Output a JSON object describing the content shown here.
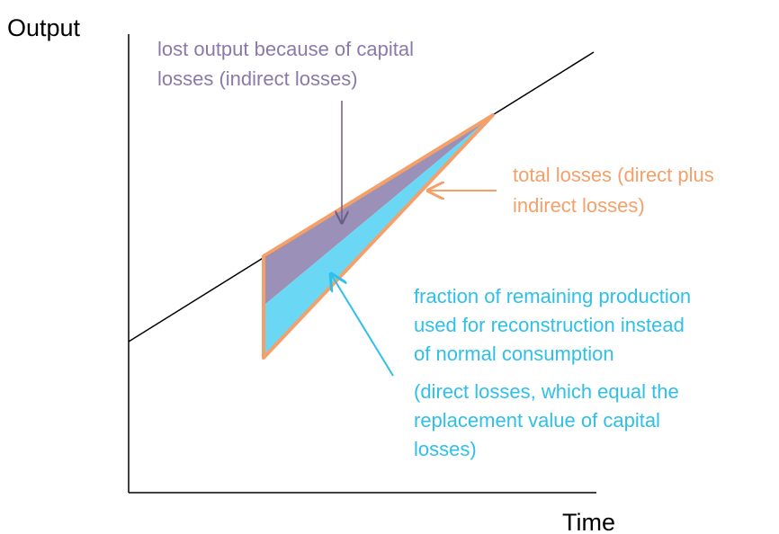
{
  "axes": {
    "y_label": "Output",
    "x_label": "Time"
  },
  "annotations": [
    {
      "lines": [
        "lost output because of capital",
        "losses (indirect losses)"
      ]
    },
    {
      "lines": [
        "total losses (direct plus",
        "indirect losses)"
      ]
    },
    {
      "lines": [
        "fraction of remaining production",
        "used for reconstruction instead",
        "of normal consumption",
        "(direct losses, which equal the",
        "replacement value of capital",
        "losses)"
      ]
    }
  ]
}
